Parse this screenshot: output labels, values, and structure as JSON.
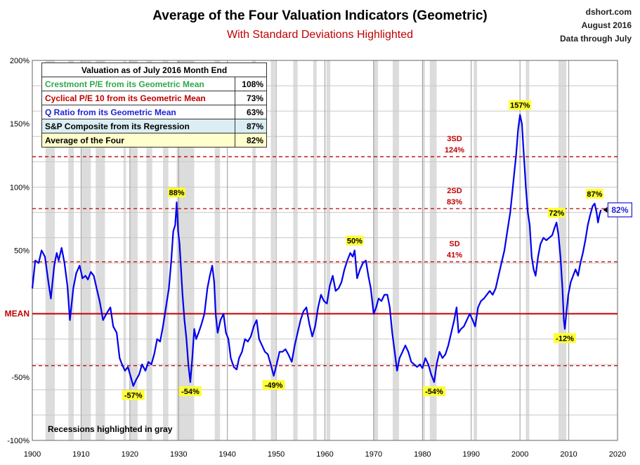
{
  "header": {
    "title": "Average of the Four Valuation Indicators (Geometric)",
    "subtitle": "With Standard Deviations Highlighted",
    "source_line1": "dshort.com",
    "source_line2": "August 2016",
    "source_line3": "Data through July"
  },
  "table": {
    "header": "Valuation as of July 2016 Month End",
    "rows": [
      {
        "label": "Crestmont P/E from its Geometric Mean",
        "value": "108%",
        "color": "#2ea84a",
        "bg": "#ffffff"
      },
      {
        "label": "Cyclical P/E 10 from its Geometric Mean",
        "value": "73%",
        "color": "#c00000",
        "bg": "#ffffff"
      },
      {
        "label": "Q Ratio from its Geometric Mean",
        "value": "63%",
        "color": "#1f1fd6",
        "bg": "#ffffff"
      },
      {
        "label": "S&P Composite from its Regression",
        "value": "87%",
        "color": "#000000",
        "bg": "#dbeef4"
      },
      {
        "label": "Average of the Four",
        "value": "82%",
        "color": "#000000",
        "bg": "#ffffcc"
      }
    ]
  },
  "chart_data": {
    "type": "line",
    "x_range": [
      1900,
      2020
    ],
    "y_range": [
      -100,
      200
    ],
    "x_ticks": [
      1900,
      1910,
      1920,
      1930,
      1940,
      1950,
      1960,
      1970,
      1980,
      1990,
      2000,
      2010,
      2020
    ],
    "x_tick_labels": [
      "1900",
      "1910",
      "1920",
      "1930",
      "1940",
      "1950",
      "1960",
      "1970",
      "1980",
      "1990",
      "2000",
      "2010",
      "2020"
    ],
    "y_ticks": [
      -100,
      -50,
      0,
      50,
      100,
      150,
      200
    ],
    "y_tick_labels": [
      "-100%",
      "-50%",
      "MEAN",
      "50%",
      "100%",
      "150%",
      "200%"
    ],
    "grid": true,
    "line_color": "#0000ee",
    "mean_color": "#c00000",
    "recession_color": "#dcdcdc",
    "series": [
      {
        "values": [
          [
            1900.0,
            20
          ],
          [
            1900.6,
            42
          ],
          [
            1901.3,
            40
          ],
          [
            1901.9,
            50
          ],
          [
            1902.6,
            45
          ],
          [
            1903.3,
            25
          ],
          [
            1903.8,
            12
          ],
          [
            1904.5,
            38
          ],
          [
            1905.0,
            48
          ],
          [
            1905.4,
            42
          ],
          [
            1906.0,
            52
          ],
          [
            1906.6,
            40
          ],
          [
            1907.2,
            22
          ],
          [
            1907.7,
            -5
          ],
          [
            1908.4,
            20
          ],
          [
            1909.0,
            32
          ],
          [
            1909.7,
            38
          ],
          [
            1910.3,
            28
          ],
          [
            1910.9,
            30
          ],
          [
            1911.4,
            27
          ],
          [
            1912.0,
            33
          ],
          [
            1912.6,
            30
          ],
          [
            1913.2,
            20
          ],
          [
            1913.8,
            10
          ],
          [
            1914.5,
            -5
          ],
          [
            1915.2,
            0
          ],
          [
            1916.0,
            5
          ],
          [
            1916.6,
            -10
          ],
          [
            1917.3,
            -15
          ],
          [
            1917.9,
            -35
          ],
          [
            1918.4,
            -40
          ],
          [
            1919.0,
            -45
          ],
          [
            1919.6,
            -42
          ],
          [
            1920.2,
            -50
          ],
          [
            1920.7,
            -57
          ],
          [
            1921.3,
            -52
          ],
          [
            1921.9,
            -48
          ],
          [
            1922.5,
            -40
          ],
          [
            1923.2,
            -45
          ],
          [
            1923.8,
            -38
          ],
          [
            1924.4,
            -40
          ],
          [
            1925.0,
            -32
          ],
          [
            1925.6,
            -20
          ],
          [
            1926.2,
            -22
          ],
          [
            1926.8,
            -10
          ],
          [
            1927.4,
            5
          ],
          [
            1928.0,
            20
          ],
          [
            1928.5,
            42
          ],
          [
            1928.9,
            65
          ],
          [
            1929.3,
            70
          ],
          [
            1929.6,
            88
          ],
          [
            1929.9,
            65
          ],
          [
            1930.2,
            55
          ],
          [
            1930.5,
            35
          ],
          [
            1930.8,
            15
          ],
          [
            1931.2,
            -5
          ],
          [
            1931.6,
            -20
          ],
          [
            1932.0,
            -40
          ],
          [
            1932.4,
            -54
          ],
          [
            1932.8,
            -35
          ],
          [
            1933.2,
            -12
          ],
          [
            1933.6,
            -20
          ],
          [
            1934.1,
            -15
          ],
          [
            1934.7,
            -8
          ],
          [
            1935.3,
            0
          ],
          [
            1935.9,
            20
          ],
          [
            1936.4,
            30
          ],
          [
            1936.9,
            38
          ],
          [
            1937.3,
            25
          ],
          [
            1937.6,
            0
          ],
          [
            1938.0,
            -15
          ],
          [
            1938.6,
            -5
          ],
          [
            1939.2,
            0
          ],
          [
            1939.7,
            -15
          ],
          [
            1940.2,
            -20
          ],
          [
            1940.7,
            -35
          ],
          [
            1941.3,
            -42
          ],
          [
            1941.9,
            -44
          ],
          [
            1942.4,
            -35
          ],
          [
            1943.0,
            -30
          ],
          [
            1943.6,
            -20
          ],
          [
            1944.2,
            -22
          ],
          [
            1944.8,
            -18
          ],
          [
            1945.4,
            -10
          ],
          [
            1946.0,
            -5
          ],
          [
            1946.5,
            -20
          ],
          [
            1947.1,
            -25
          ],
          [
            1947.7,
            -30
          ],
          [
            1948.3,
            -32
          ],
          [
            1948.9,
            -40
          ],
          [
            1949.5,
            -49
          ],
          [
            1950.1,
            -40
          ],
          [
            1950.7,
            -30
          ],
          [
            1951.3,
            -30
          ],
          [
            1951.9,
            -28
          ],
          [
            1952.5,
            -32
          ],
          [
            1953.2,
            -38
          ],
          [
            1953.8,
            -25
          ],
          [
            1954.4,
            -15
          ],
          [
            1955.0,
            -5
          ],
          [
            1955.6,
            2
          ],
          [
            1956.2,
            5
          ],
          [
            1956.8,
            -8
          ],
          [
            1957.4,
            -18
          ],
          [
            1958.0,
            -10
          ],
          [
            1958.6,
            5
          ],
          [
            1959.2,
            15
          ],
          [
            1959.8,
            10
          ],
          [
            1960.4,
            8
          ],
          [
            1961.0,
            22
          ],
          [
            1961.6,
            30
          ],
          [
            1962.2,
            18
          ],
          [
            1962.8,
            20
          ],
          [
            1963.4,
            25
          ],
          [
            1964.0,
            35
          ],
          [
            1964.6,
            42
          ],
          [
            1965.2,
            48
          ],
          [
            1965.7,
            45
          ],
          [
            1966.1,
            50
          ],
          [
            1966.6,
            28
          ],
          [
            1967.2,
            35
          ],
          [
            1967.8,
            40
          ],
          [
            1968.4,
            42
          ],
          [
            1968.9,
            30
          ],
          [
            1969.4,
            20
          ],
          [
            1970.0,
            0
          ],
          [
            1970.5,
            5
          ],
          [
            1971.0,
            12
          ],
          [
            1971.6,
            10
          ],
          [
            1972.2,
            15
          ],
          [
            1972.8,
            15
          ],
          [
            1973.3,
            5
          ],
          [
            1973.8,
            -15
          ],
          [
            1974.3,
            -30
          ],
          [
            1974.8,
            -45
          ],
          [
            1975.3,
            -35
          ],
          [
            1975.9,
            -30
          ],
          [
            1976.5,
            -25
          ],
          [
            1977.1,
            -30
          ],
          [
            1977.7,
            -38
          ],
          [
            1978.3,
            -40
          ],
          [
            1978.9,
            -42
          ],
          [
            1979.5,
            -40
          ],
          [
            1980.0,
            -43
          ],
          [
            1980.6,
            -35
          ],
          [
            1981.2,
            -40
          ],
          [
            1981.8,
            -48
          ],
          [
            1982.4,
            -54
          ],
          [
            1982.9,
            -40
          ],
          [
            1983.5,
            -30
          ],
          [
            1984.1,
            -35
          ],
          [
            1984.7,
            -32
          ],
          [
            1985.3,
            -25
          ],
          [
            1985.9,
            -15
          ],
          [
            1986.5,
            -5
          ],
          [
            1987.0,
            5
          ],
          [
            1987.4,
            -15
          ],
          [
            1987.9,
            -12
          ],
          [
            1988.5,
            -10
          ],
          [
            1989.1,
            -5
          ],
          [
            1989.7,
            0
          ],
          [
            1990.3,
            -5
          ],
          [
            1990.8,
            -10
          ],
          [
            1991.4,
            5
          ],
          [
            1992.0,
            10
          ],
          [
            1992.6,
            12
          ],
          [
            1993.2,
            15
          ],
          [
            1993.8,
            18
          ],
          [
            1994.4,
            15
          ],
          [
            1995.0,
            20
          ],
          [
            1995.6,
            30
          ],
          [
            1996.2,
            40
          ],
          [
            1996.8,
            50
          ],
          [
            1997.4,
            65
          ],
          [
            1998.0,
            80
          ],
          [
            1998.4,
            95
          ],
          [
            1998.8,
            110
          ],
          [
            1999.2,
            125
          ],
          [
            1999.6,
            145
          ],
          [
            2000.0,
            157
          ],
          [
            2000.4,
            150
          ],
          [
            2000.8,
            125
          ],
          [
            2001.2,
            100
          ],
          [
            2001.6,
            80
          ],
          [
            2002.0,
            70
          ],
          [
            2002.4,
            45
          ],
          [
            2002.8,
            35
          ],
          [
            2003.2,
            30
          ],
          [
            2003.7,
            45
          ],
          [
            2004.2,
            55
          ],
          [
            2004.8,
            60
          ],
          [
            2005.4,
            58
          ],
          [
            2006.0,
            60
          ],
          [
            2006.6,
            62
          ],
          [
            2007.1,
            68
          ],
          [
            2007.5,
            72
          ],
          [
            2007.9,
            62
          ],
          [
            2008.3,
            45
          ],
          [
            2008.7,
            20
          ],
          [
            2009.0,
            -5
          ],
          [
            2009.2,
            -12
          ],
          [
            2009.5,
            0
          ],
          [
            2009.9,
            15
          ],
          [
            2010.4,
            25
          ],
          [
            2010.9,
            30
          ],
          [
            2011.4,
            35
          ],
          [
            2011.9,
            30
          ],
          [
            2012.4,
            40
          ],
          [
            2012.9,
            48
          ],
          [
            2013.4,
            58
          ],
          [
            2013.9,
            70
          ],
          [
            2014.4,
            78
          ],
          [
            2014.9,
            85
          ],
          [
            2015.3,
            87
          ],
          [
            2015.7,
            80
          ],
          [
            2016.0,
            72
          ],
          [
            2016.3,
            78
          ],
          [
            2016.6,
            82
          ]
        ]
      }
    ],
    "reference_lines": [
      {
        "value": 124,
        "label_top": "3SD",
        "label_bottom": "124%",
        "style": "dashed"
      },
      {
        "value": 83,
        "label_top": "2SD",
        "label_bottom": "83%",
        "style": "dashed"
      },
      {
        "value": 41,
        "label_top": "SD",
        "label_bottom": "41%",
        "style": "dashed"
      },
      {
        "value": 0,
        "label_top": "",
        "label_bottom": "",
        "style": "solid"
      },
      {
        "value": -41,
        "label_top": "",
        "label_bottom": "",
        "style": "dashed"
      }
    ],
    "recessions": [
      [
        1902.7,
        1904.6
      ],
      [
        1907.4,
        1908.5
      ],
      [
        1910.1,
        1912.0
      ],
      [
        1913.0,
        1914.9
      ],
      [
        1918.7,
        1919.2
      ],
      [
        1920.0,
        1921.6
      ],
      [
        1923.4,
        1924.6
      ],
      [
        1926.8,
        1927.9
      ],
      [
        1929.6,
        1933.2
      ],
      [
        1937.4,
        1938.5
      ],
      [
        1945.1,
        1945.8
      ],
      [
        1948.9,
        1949.8
      ],
      [
        1953.5,
        1954.4
      ],
      [
        1957.6,
        1958.3
      ],
      [
        1960.3,
        1961.1
      ],
      [
        1969.9,
        1970.9
      ],
      [
        1973.9,
        1975.2
      ],
      [
        1980.0,
        1980.5
      ],
      [
        1981.5,
        1982.9
      ],
      [
        1990.5,
        1991.2
      ],
      [
        2001.2,
        2001.9
      ],
      [
        2007.9,
        2009.5
      ]
    ],
    "annotations": [
      {
        "x": 1920.7,
        "y": -57,
        "text": "-57%",
        "pos": "below"
      },
      {
        "x": 1929.6,
        "y": 88,
        "text": "88%",
        "pos": "above"
      },
      {
        "x": 1932.4,
        "y": -54,
        "text": "-54%",
        "pos": "below"
      },
      {
        "x": 1949.5,
        "y": -49,
        "text": "-49%",
        "pos": "below"
      },
      {
        "x": 1966.1,
        "y": 50,
        "text": "50%",
        "pos": "above"
      },
      {
        "x": 1982.4,
        "y": -54,
        "text": "-54%",
        "pos": "below"
      },
      {
        "x": 2000.0,
        "y": 157,
        "text": "157%",
        "pos": "above"
      },
      {
        "x": 2007.5,
        "y": 72,
        "text": "72%",
        "pos": "above"
      },
      {
        "x": 2009.2,
        "y": -12,
        "text": "-12%",
        "pos": "below"
      },
      {
        "x": 2015.3,
        "y": 87,
        "text": "87%",
        "pos": "above"
      }
    ],
    "current_callout": {
      "x": 2016.6,
      "y": 82,
      "text": "82%"
    },
    "footnote": "Recessions highlighted in gray"
  }
}
